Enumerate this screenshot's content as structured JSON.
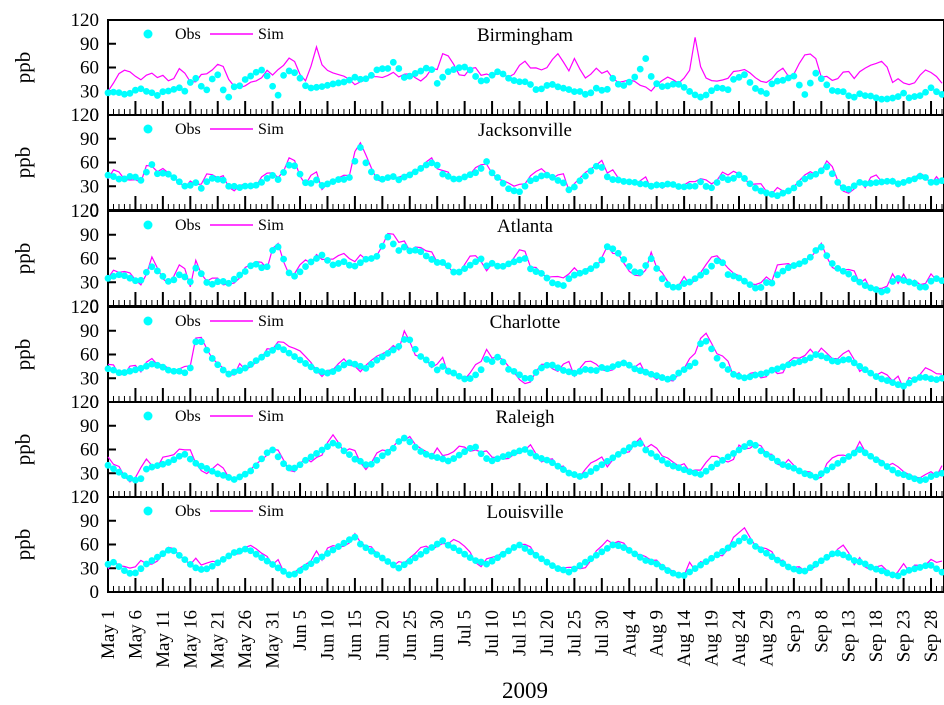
{
  "chart_data": {
    "type": "line",
    "xlabel": "2009",
    "ylabel": "ppb",
    "ylim": [
      0,
      120
    ],
    "yticks": [
      0,
      30,
      60,
      90,
      120
    ],
    "date_labels": [
      "May 1",
      "May 6",
      "May 11",
      "May 16",
      "May 21",
      "May 26",
      "May 31",
      "Jun 5",
      "Jun 10",
      "Jun 15",
      "Jun 20",
      "Jun 25",
      "Jun 30",
      "Jul 5",
      "Jul 10",
      "Jul 15",
      "Jul 20",
      "Jul 25",
      "Jul 30",
      "Aug 4",
      "Aug 9",
      "Aug 14",
      "Aug 19",
      "Aug 24",
      "Aug 29",
      "Sep 3",
      "Sep 8",
      "Sep 13",
      "Sep 18",
      "Sep 23",
      "Sep 28"
    ],
    "legend": {
      "obs": "Obs",
      "sim": "Sim"
    },
    "colors": {
      "obs": "#00ffff",
      "sim": "#ff00ff",
      "axis": "#000000"
    },
    "panels": [
      {
        "city": "Birmingham",
        "obs": [
          28,
          29,
          28,
          25,
          30,
          34,
          30,
          28,
          24,
          32,
          29,
          37,
          28,
          41,
          47,
          33,
          31,
          60,
          35,
          21,
          36,
          37,
          48,
          50,
          59,
          52,
          37,
          24,
          57,
          55,
          52,
          38,
          34,
          35,
          36,
          38,
          40,
          41,
          43,
          48,
          45,
          46,
          52,
          61,
          55,
          68,
          59,
          46,
          50,
          54,
          57,
          63,
          39,
          48,
          56,
          58,
          61,
          60,
          50,
          43,
          44,
          52,
          56,
          48,
          44,
          42,
          42,
          38,
          30,
          35,
          40,
          36,
          34,
          32,
          29,
          30,
          23,
          35,
          31,
          32,
          48,
          36,
          38,
          45,
          53,
          74,
          48,
          38,
          35,
          38,
          40,
          36,
          30,
          25,
          22,
          27,
          34,
          35,
          30,
          45,
          48,
          52,
          34,
          33,
          24,
          39,
          43,
          44,
          48,
          50,
          21,
          38,
          53,
          45,
          36,
          28,
          32,
          25,
          22,
          27,
          24,
          24,
          20,
          20,
          21,
          23,
          28,
          20,
          25,
          24,
          36,
          30,
          26
        ],
        "sim": [
          30,
          42,
          56,
          57,
          52,
          43,
          50,
          53,
          46,
          52,
          36,
          60,
          55,
          42,
          42,
          54,
          51,
          63,
          66,
          46,
          36,
          34,
          38,
          44,
          42,
          58,
          50,
          58,
          64,
          76,
          60,
          38,
          58,
          86,
          60,
          55,
          52,
          50,
          47,
          38,
          42,
          45,
          50,
          47,
          48,
          55,
          48,
          52,
          52,
          44,
          42,
          60,
          55,
          78,
          74,
          60,
          44,
          57,
          62,
          50,
          52,
          48,
          55,
          48,
          48,
          62,
          68,
          58,
          60,
          55,
          65,
          80,
          68,
          55,
          75,
          50,
          44,
          62,
          52,
          56,
          45,
          40,
          44,
          45,
          38,
          36,
          30,
          40,
          45,
          50,
          38,
          45,
          54,
          102,
          50,
          45,
          42,
          44,
          45,
          55,
          56,
          58,
          50,
          44,
          40,
          45,
          55,
          60,
          44,
          58,
          75,
          78,
          72,
          45,
          50,
          40,
          52,
          58,
          45,
          55,
          60,
          64,
          66,
          70,
          40,
          46,
          40,
          38,
          42,
          58,
          55,
          50,
          40
        ]
      },
      {
        "city": "Jacksonville",
        "obs": [
          44,
          42,
          38,
          40,
          45,
          35,
          47,
          58,
          43,
          48,
          43,
          38,
          30,
          31,
          35,
          25,
          42,
          38,
          40,
          30,
          30,
          28,
          31,
          30,
          33,
          39,
          44,
          38,
          50,
          60,
          52,
          35,
          33,
          38,
          30,
          34,
          37,
          40,
          36,
          60,
          80,
          55,
          45,
          38,
          40,
          43,
          38,
          42,
          45,
          50,
          55,
          60,
          58,
          45,
          42,
          38,
          40,
          44,
          46,
          52,
          62,
          43,
          40,
          28,
          25,
          22,
          30,
          38,
          40,
          45,
          43,
          38,
          35,
          25,
          30,
          40,
          45,
          55,
          56,
          42,
          38,
          38,
          35,
          36,
          33,
          33,
          30,
          32,
          31,
          34,
          30,
          29,
          30,
          30,
          37,
          26,
          30,
          42,
          38,
          40,
          45,
          38,
          30,
          25,
          22,
          20,
          18,
          22,
          25,
          30,
          38,
          42,
          45,
          50,
          56,
          40,
          30,
          25,
          30,
          35,
          33,
          34,
          35,
          36,
          37,
          33,
          35,
          38,
          40,
          45,
          35,
          35,
          37
        ]
      },
      {
        "city": "Atlanta",
        "obs": [
          35,
          38,
          40,
          37,
          33,
          30,
          42,
          50,
          43,
          35,
          28,
          40,
          38,
          30,
          50,
          38,
          25,
          30,
          32,
          28,
          34,
          40,
          45,
          55,
          50,
          45,
          70,
          75,
          55,
          35,
          40,
          48,
          55,
          60,
          65,
          55,
          50,
          58,
          52,
          50,
          55,
          60,
          60,
          65,
          90,
          80,
          70,
          75,
          68,
          72,
          65,
          60,
          55,
          55,
          50,
          40,
          45,
          50,
          55,
          60,
          50,
          55,
          48,
          52,
          55,
          58,
          60,
          45,
          43,
          40,
          30,
          28,
          25,
          35,
          40,
          42,
          45,
          50,
          55,
          75,
          72,
          65,
          55,
          45,
          40,
          50,
          60,
          45,
          30,
          25,
          22,
          28,
          30,
          35,
          40,
          45,
          55,
          60,
          40,
          38,
          35,
          30,
          25,
          20,
          30,
          28,
          40,
          45,
          50,
          52,
          55,
          60,
          70,
          75,
          60,
          50,
          45,
          42,
          35,
          30,
          25,
          22,
          20,
          15,
          30,
          35,
          32,
          30,
          28,
          20,
          30,
          35,
          32
        ],
        "sim": []
      },
      {
        "city": "Charlotte",
        "obs": [
          42,
          40,
          36,
          38,
          40,
          42,
          45,
          48,
          46,
          43,
          38,
          40,
          36,
          42,
          80,
          75,
          60,
          50,
          42,
          35,
          38,
          40,
          44,
          50,
          55,
          60,
          65,
          70,
          65,
          60,
          55,
          50,
          45,
          40,
          38,
          36,
          40,
          45,
          50,
          48,
          45,
          42,
          50,
          55,
          60,
          65,
          70,
          80,
          78,
          60,
          55,
          50,
          40,
          45,
          38,
          36,
          30,
          28,
          33,
          40,
          55,
          50,
          60,
          42,
          40,
          35,
          30,
          30,
          40,
          45,
          48,
          44,
          40,
          38,
          36,
          40,
          42,
          38,
          44,
          42,
          45,
          48,
          50,
          43,
          40,
          38,
          35,
          33,
          30,
          28,
          35,
          40,
          45,
          50,
          80,
          75,
          60,
          48,
          42,
          35,
          32,
          30,
          33,
          35,
          36,
          40,
          42,
          45,
          48,
          50,
          52,
          55,
          60,
          58,
          55,
          50,
          52,
          55,
          50,
          45,
          40,
          35,
          30,
          28,
          25,
          22,
          20,
          25,
          30,
          32,
          30,
          28,
          30
        ],
        "sim": []
      },
      {
        "city": "Raleigh",
        "obs": [
          40,
          35,
          30,
          25,
          22,
          20,
          35,
          38,
          40,
          42,
          45,
          50,
          55,
          48,
          42,
          38,
          35,
          30,
          28,
          25,
          22,
          26,
          30,
          35,
          45,
          55,
          60,
          50,
          40,
          35,
          38,
          45,
          50,
          55,
          60,
          65,
          70,
          60,
          55,
          48,
          45,
          40,
          42,
          50,
          55,
          60,
          70,
          75,
          68,
          60,
          55,
          52,
          50,
          48,
          45,
          50,
          55,
          60,
          65,
          55,
          48,
          45,
          50,
          52,
          55,
          58,
          60,
          55,
          50,
          48,
          45,
          40,
          35,
          30,
          28,
          25,
          30,
          35,
          40,
          45,
          50,
          55,
          60,
          65,
          70,
          60,
          55,
          50,
          45,
          40,
          38,
          35,
          32,
          30,
          28,
          35,
          40,
          45,
          50,
          55,
          60,
          65,
          70,
          60,
          55,
          50,
          45,
          40,
          38,
          35,
          30,
          28,
          25,
          30,
          35,
          40,
          45,
          50,
          55,
          60,
          55,
          50,
          45,
          40,
          35,
          30,
          28,
          25,
          22,
          20,
          25,
          28,
          30
        ],
        "sim": []
      },
      {
        "city": "Louisville",
        "obs": [
          35,
          38,
          30,
          25,
          22,
          28,
          35,
          40,
          45,
          50,
          55,
          48,
          42,
          35,
          30,
          28,
          30,
          35,
          40,
          45,
          50,
          52,
          55,
          50,
          45,
          40,
          35,
          30,
          25,
          20,
          25,
          30,
          35,
          40,
          45,
          50,
          55,
          60,
          65,
          70,
          60,
          55,
          50,
          45,
          40,
          35,
          30,
          35,
          40,
          45,
          50,
          55,
          60,
          65,
          58,
          55,
          50,
          45,
          40,
          38,
          35,
          40,
          45,
          50,
          55,
          60,
          55,
          50,
          45,
          40,
          35,
          30,
          28,
          25,
          30,
          35,
          40,
          45,
          50,
          55,
          60,
          58,
          55,
          50,
          45,
          40,
          38,
          35,
          30,
          25,
          22,
          20,
          25,
          30,
          35,
          40,
          45,
          50,
          55,
          60,
          65,
          70,
          60,
          55,
          50,
          45,
          40,
          35,
          30,
          28,
          25,
          30,
          35,
          40,
          45,
          50,
          48,
          45,
          40,
          38,
          35,
          30,
          28,
          25,
          22,
          20,
          25,
          28,
          30,
          32,
          35,
          30,
          25
        ],
        "sim": []
      }
    ]
  }
}
